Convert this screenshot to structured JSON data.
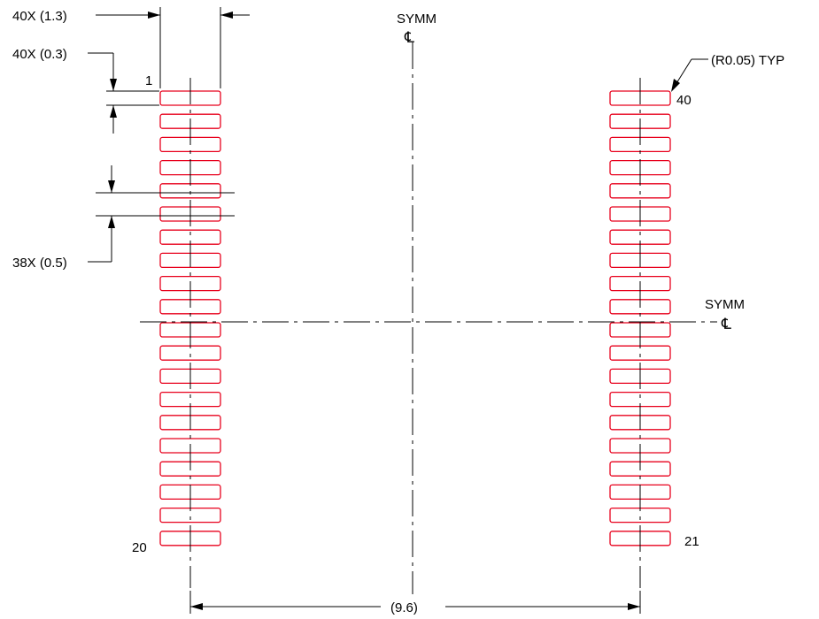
{
  "labels": {
    "pad_length": "40X (1.3)",
    "pad_width": "40X (0.3)",
    "pitch": "38X (0.5)",
    "corner_radius": "(R0.05) TYP",
    "row_spacing": "(9.6)",
    "symm_vertical": "SYMM",
    "symm_horizontal": "SYMM",
    "centerline_symbol": "℄",
    "pin_first_left": "1",
    "pin_last_left": "20",
    "pin_first_right": "40",
    "pin_last_right": "21"
  },
  "pads": {
    "count_per_row": 20,
    "rows": 2
  },
  "colors": {
    "pad": "#e8001c",
    "line": "#000000"
  }
}
